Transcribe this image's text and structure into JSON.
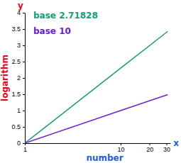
{
  "chart_data": {
    "type": "line",
    "x_label": "number",
    "y_label": "logarithm",
    "annotations": [
      "y",
      "x"
    ],
    "x": [
      1,
      10,
      31
    ],
    "series": [
      {
        "name": "base 2.71828",
        "color": "#1a9b78",
        "values": [
          0,
          2.3,
          3.43
        ]
      },
      {
        "name": "base 10",
        "color": "#6a22c9",
        "values": [
          0,
          1,
          1.49
        ]
      }
    ],
    "log": "x",
    "xlim": [
      1,
      33
    ],
    "xticks": [
      1,
      10,
      20,
      30
    ],
    "ylim": [
      0,
      4
    ],
    "yticks": [
      0,
      0.5,
      1,
      1.5,
      2,
      2.5,
      3,
      3.5,
      4
    ],
    "legend": "upper left"
  }
}
